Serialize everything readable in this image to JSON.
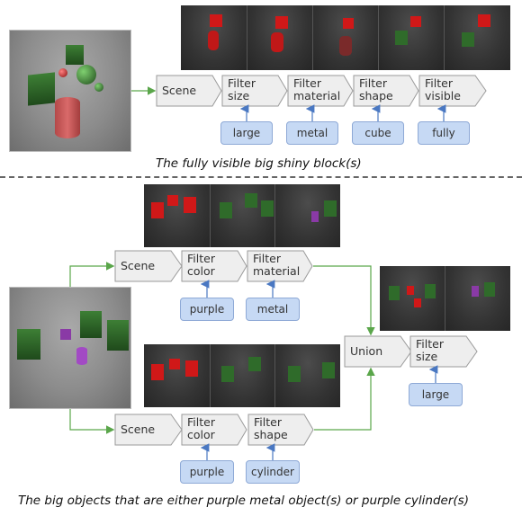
{
  "top": {
    "pipeline": [
      {
        "line1": "Scene",
        "line2": ""
      },
      {
        "line1": "Filter",
        "line2": "size"
      },
      {
        "line1": "Filter",
        "line2": "material"
      },
      {
        "line1": "Filter",
        "line2": "shape"
      },
      {
        "line1": "Filter",
        "line2": "visible"
      }
    ],
    "args": [
      "large",
      "metal",
      "cube",
      "fully"
    ],
    "caption": "The fully visible big shiny block(s)"
  },
  "bottom": {
    "branch_a": [
      {
        "line1": "Scene",
        "line2": ""
      },
      {
        "line1": "Filter",
        "line2": "color"
      },
      {
        "line1": "Filter",
        "line2": "material"
      }
    ],
    "branch_a_args": [
      "purple",
      "metal"
    ],
    "branch_b": [
      {
        "line1": "Scene",
        "line2": ""
      },
      {
        "line1": "Filter",
        "line2": "color"
      },
      {
        "line1": "Filter",
        "line2": "shape"
      }
    ],
    "branch_b_args": [
      "purple",
      "cylinder"
    ],
    "union": "Union",
    "final": {
      "line1": "Filter",
      "line2": "size"
    },
    "final_arg": "large",
    "caption": "The big objects that are either purple metal object(s) or purple cylinder(s)"
  },
  "colors": {
    "module_fill": "#eeeeee",
    "module_stroke": "#9a9a9a",
    "pill_fill": "#c6d9f4",
    "arrow_green": "#5aa64a",
    "arrow_blue": "#4a78c2",
    "object_red": "#d01818",
    "object_green": "#2f6b2a",
    "object_purple": "#8a3aa6"
  }
}
